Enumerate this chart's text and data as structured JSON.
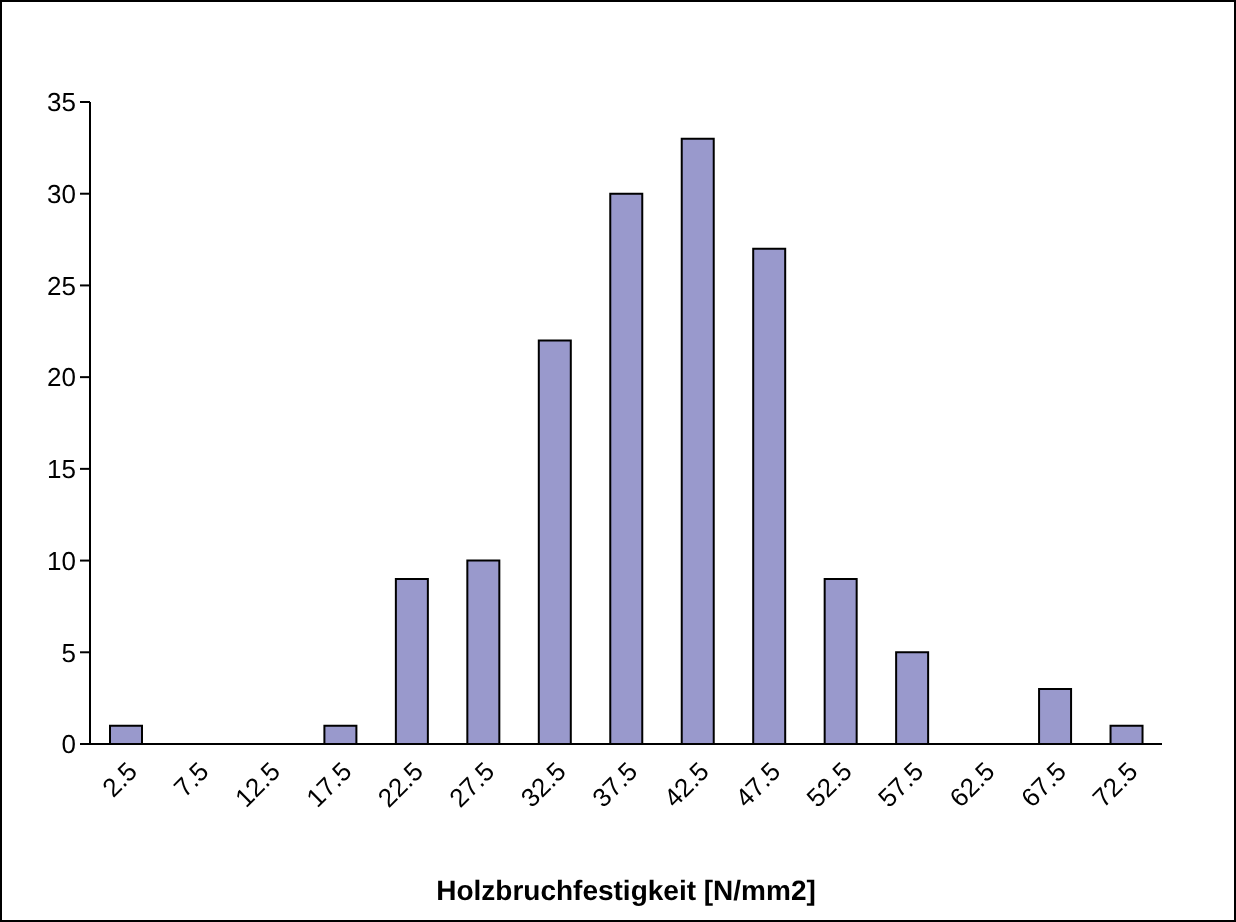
{
  "chart_data": {
    "type": "bar",
    "xlabel": "Holzbruchfestigkeit [N/mm2]",
    "categories": [
      "2.5",
      "7.5",
      "12.5",
      "17.5",
      "22.5",
      "27.5",
      "32.5",
      "37.5",
      "42.5",
      "47.5",
      "52.5",
      "57.5",
      "62.5",
      "67.5",
      "72.5"
    ],
    "values": [
      1,
      0,
      0,
      1,
      9,
      10,
      22,
      30,
      33,
      27,
      9,
      5,
      0,
      3,
      1
    ],
    "color": "#9999cc",
    "ylim": [
      0,
      35
    ],
    "yticks": [
      0,
      5,
      10,
      15,
      20,
      25,
      30,
      35
    ],
    "grid": false,
    "legend": false
  }
}
